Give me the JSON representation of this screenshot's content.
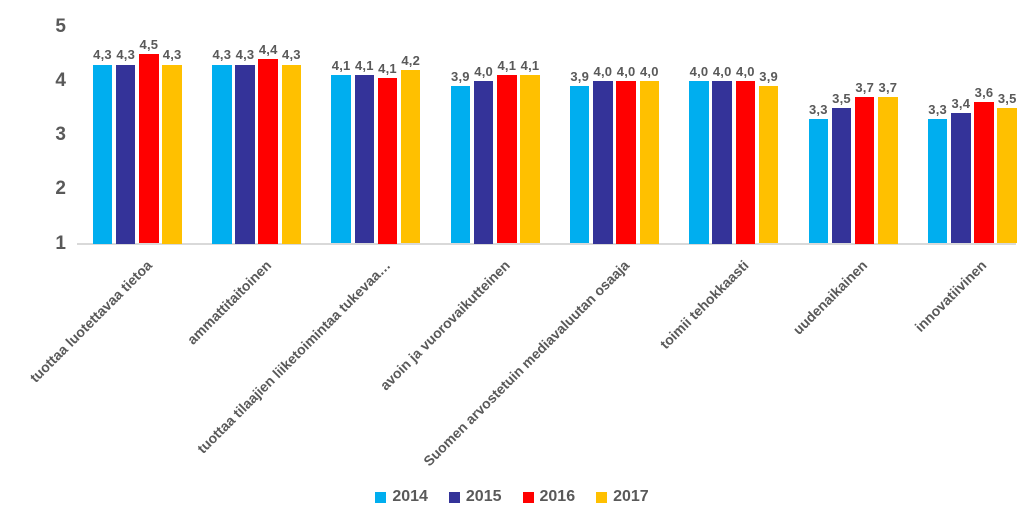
{
  "chart_data": {
    "type": "bar",
    "title": "",
    "xlabel": "",
    "ylabel": "",
    "categories": [
      "tuottaa luotettavaa tietoa",
      "ammattitaitoinen",
      "tuottaa tilaajien liiketoimintaa tukevaa…",
      "avoin ja vuorovaikutteinen",
      "Suomen arvostetuin mediavaluutan osaaja",
      "toimii tehokkaasti",
      "uudenaikainen",
      "innovatiivinen"
    ],
    "series": [
      {
        "name": "2014",
        "color": "#00AEEF",
        "values": [
          4.3,
          4.3,
          4.1,
          3.9,
          3.9,
          4.0,
          3.3,
          3.3
        ],
        "labels": [
          "4,3",
          "4,3",
          "4,1",
          "3,9",
          "3,9",
          "4,0",
          "3,3",
          "3,3"
        ]
      },
      {
        "name": "2015",
        "color": "#343399",
        "values": [
          4.3,
          4.3,
          4.1,
          4.0,
          4.0,
          4.0,
          3.5,
          3.4
        ],
        "labels": [
          "4,3",
          "4,3",
          "4,1",
          "4,0",
          "4,0",
          "4,0",
          "3,5",
          "3,4"
        ]
      },
      {
        "name": "2016",
        "color": "#FF0000",
        "values": [
          4.5,
          4.4,
          4.05,
          4.1,
          4.0,
          4.0,
          3.7,
          3.6
        ],
        "labels": [
          "4,5",
          "4,4",
          "4,1",
          "4,1",
          "4,0",
          "4,0",
          "3,7",
          "3,6"
        ]
      },
      {
        "name": "2017",
        "color": "#FFC000",
        "values": [
          4.3,
          4.3,
          4.2,
          4.1,
          4.0,
          3.9,
          3.7,
          3.5
        ],
        "labels": [
          "4,3",
          "4,3",
          "4,2",
          "4,1",
          "4,0",
          "3,9",
          "3,7",
          "3,5"
        ]
      }
    ],
    "y_axis": {
      "min": 1,
      "max": 5,
      "ticks": [
        5,
        4,
        3,
        2,
        1
      ]
    },
    "grid": false,
    "legend_position": "bottom"
  },
  "colors": {
    "text": "#595959",
    "axis_line": "#D9D9D9",
    "background": "#FFFFFF"
  }
}
